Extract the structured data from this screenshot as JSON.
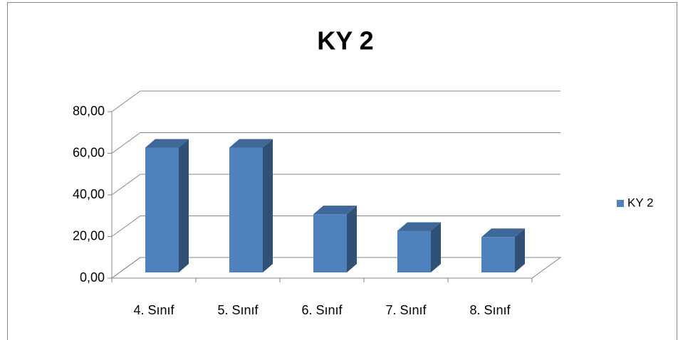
{
  "chart_data": {
    "type": "bar",
    "title": "KY 2",
    "categories": [
      "4. Sınıf",
      "5. Sınıf",
      "6. Sınıf",
      "7. Sınıf",
      "8. Sınıf"
    ],
    "series": [
      {
        "name": "KY 2",
        "color": "#4f81bd",
        "values": [
          60,
          60,
          28,
          20,
          17
        ]
      }
    ],
    "ylim": [
      0,
      80
    ],
    "yticks": [
      {
        "value": 0,
        "label": "0,00"
      },
      {
        "value": 20,
        "label": "20,00"
      },
      {
        "value": 40,
        "label": "40,00"
      },
      {
        "value": 60,
        "label": "60,00"
      },
      {
        "value": 80,
        "label": "80,00"
      }
    ],
    "grid": true,
    "legend": "right"
  }
}
